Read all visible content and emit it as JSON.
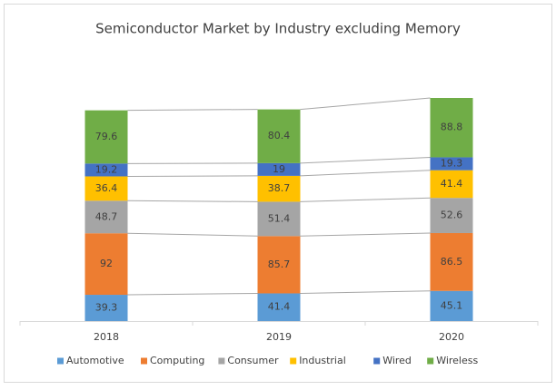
{
  "chart_data": {
    "type": "stacked_bar",
    "title": "Semiconductor Market by Industry excluding Memory",
    "categories": [
      "2018",
      "2019",
      "2020"
    ],
    "series": [
      {
        "name": "Automotive",
        "color": "#5b9bd5",
        "values": [
          39.3,
          41.4,
          45.1
        ]
      },
      {
        "name": "Computing",
        "color": "#ed7d31",
        "values": [
          92,
          85.7,
          86.5
        ]
      },
      {
        "name": "Consumer",
        "color": "#a5a5a5",
        "values": [
          48.7,
          51.4,
          52.6
        ]
      },
      {
        "name": "Industrial",
        "color": "#ffc000",
        "values": [
          36.4,
          38.7,
          41.4
        ]
      },
      {
        "name": "Wired",
        "color": "#4472c4",
        "values": [
          19.2,
          19,
          19.3
        ]
      },
      {
        "name": "Wireless",
        "color": "#70ad47",
        "values": [
          79.6,
          80.4,
          88.8
        ]
      }
    ],
    "legend": "bottom",
    "series_lines": true
  }
}
